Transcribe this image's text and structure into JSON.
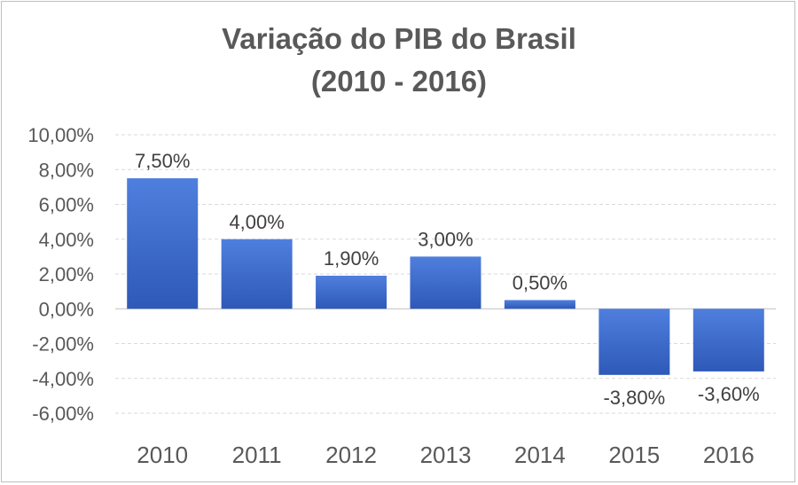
{
  "chart_data": {
    "type": "bar",
    "title": [
      "Variação do PIB do Brasil",
      "(2010 - 2016)"
    ],
    "categories": [
      "2010",
      "2011",
      "2012",
      "2013",
      "2014",
      "2015",
      "2016"
    ],
    "values": [
      7.5,
      4.0,
      1.9,
      3.0,
      0.5,
      -3.8,
      -3.6
    ],
    "data_labels": [
      "7,50%",
      "4,00%",
      "1,90%",
      "3,00%",
      "0,50%",
      "-3,80%",
      "-3,60%"
    ],
    "y_ticks": [
      10,
      8,
      6,
      4,
      2,
      0,
      -2,
      -4,
      -6
    ],
    "y_tick_labels": [
      "10,00%",
      "8,00%",
      "6,00%",
      "4,00%",
      "2,00%",
      "0,00%",
      "-2,00%",
      "-4,00%",
      "-6,00%"
    ],
    "ylim": [
      -6,
      10
    ],
    "xlabel": "",
    "ylabel": "",
    "grid": true,
    "bar_color_top": "#4f7fde",
    "bar_color_bottom": "#2e59b8"
  }
}
